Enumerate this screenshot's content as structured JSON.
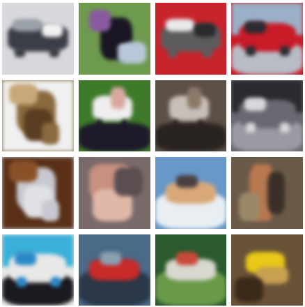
{
  "grid": {
    "rows": 4,
    "cols": 4,
    "background": "#ffffff",
    "tiles": [
      {
        "subject": "truck",
        "palette": [
          "#d8d8dc",
          "#3c3e46",
          "#9aa0a8",
          "#f2f2f2"
        ]
      },
      {
        "subject": "bird",
        "palette": [
          "#6e9a4e",
          "#1a1624",
          "#b8c8d8",
          "#8a5aa0"
        ]
      },
      {
        "subject": "truck",
        "palette": [
          "#c8242c",
          "#5c5c5e",
          "#e8e8ea",
          "#2a2a2c"
        ]
      },
      {
        "subject": "car",
        "palette": [
          "#c81c28",
          "#2c2c34",
          "#9ab0c8",
          "#b8bcc4"
        ]
      },
      {
        "subject": "dog",
        "palette": [
          "#8a6a3e",
          "#f0f0f0",
          "#5a3e22",
          "#c8a878"
        ]
      },
      {
        "subject": "horse",
        "palette": [
          "#3e7a2a",
          "#f0eef0",
          "#1e1a2a",
          "#d8a8a0"
        ]
      },
      {
        "subject": "horse",
        "palette": [
          "#5e5048",
          "#c8c0b8",
          "#2a2420",
          "#8a7868"
        ]
      },
      {
        "subject": "car",
        "palette": [
          "#6a6870",
          "#d8d8dc",
          "#2a2a30",
          "#9a9aa2"
        ]
      },
      {
        "subject": "dog",
        "palette": [
          "#c8c8d0",
          "#5a3018",
          "#e0e0e6",
          "#8a5028"
        ]
      },
      {
        "subject": "frog",
        "palette": [
          "#7a6a6a",
          "#c89080",
          "#e0b8a8",
          "#5a4e50"
        ]
      },
      {
        "subject": "ship",
        "palette": [
          "#6898c8",
          "#d8a878",
          "#e8eef2",
          "#4a4040"
        ]
      },
      {
        "subject": "deer",
        "palette": [
          "#6a5a48",
          "#b87850",
          "#3a3028",
          "#9a8868"
        ]
      },
      {
        "subject": "car",
        "palette": [
          "#e8e8e6",
          "#2a88c8",
          "#3ab0d8",
          "#1a1a20"
        ]
      },
      {
        "subject": "ship",
        "palette": [
          "#4a6a88",
          "#c82a28",
          "#2a3848",
          "#8aa0b0"
        ]
      },
      {
        "subject": "ship",
        "palette": [
          "#2a5a2e",
          "#d8d8d0",
          "#6a9a48",
          "#c84a38"
        ]
      },
      {
        "subject": "airplane",
        "palette": [
          "#6a5238",
          "#e8c818",
          "#c8a050",
          "#3a2a1a"
        ]
      }
    ]
  }
}
